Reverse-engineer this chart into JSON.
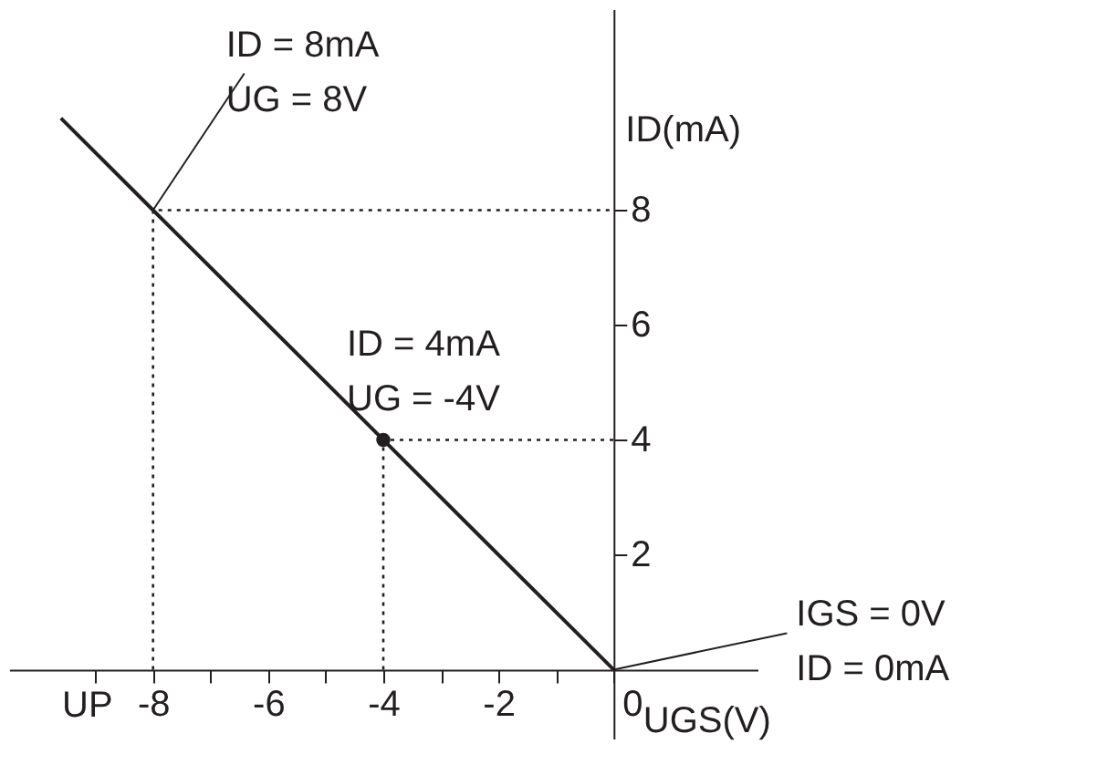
{
  "chart_data": {
    "type": "line",
    "xlabel": "UGS(V)",
    "ylabel": "ID(mA)",
    "xlim": [
      -10.5,
      2.5
    ],
    "ylim": [
      -1.2,
      11.5
    ],
    "xticks": [
      {
        "value": -9,
        "label": null
      },
      -8,
      {
        "value": -7,
        "label": null
      },
      -6,
      {
        "value": -5,
        "label": null
      },
      -4,
      {
        "value": -3,
        "label": null
      },
      -2,
      {
        "value": -1,
        "label": null
      },
      0
    ],
    "yticks": [
      2,
      4,
      6,
      8
    ],
    "grid": false,
    "annotations": [
      "UP",
      {
        "text": "ID = 8mA\nUG = 8V",
        "x": -8,
        "y": 8
      },
      {
        "text": "ID = 4mA\nUG = -4V",
        "x": -4,
        "y": 4
      },
      {
        "text": "IGS = 0V\nID = 0mA",
        "x": 0,
        "y": 0
      }
    ],
    "series": [
      {
        "color": "#231f20",
        "line_style": "solid",
        "x": [
          -9.6,
          -8,
          -4,
          0
        ],
        "values": [
          9.6,
          8,
          4,
          0
        ]
      },
      {
        "color": "#231f20",
        "line_style": "dotted",
        "x": [
          -8,
          -8,
          0
        ],
        "values": [
          0,
          8,
          8
        ]
      },
      {
        "color": "#231f20",
        "line_style": "dotted",
        "x": [
          -4,
          -4,
          0
        ],
        "values": [
          0,
          4,
          4
        ]
      },
      {
        "type": "scatter",
        "color": "#231f20",
        "marker": "circle",
        "x": [
          -4
        ],
        "values": [
          4
        ]
      }
    ]
  }
}
